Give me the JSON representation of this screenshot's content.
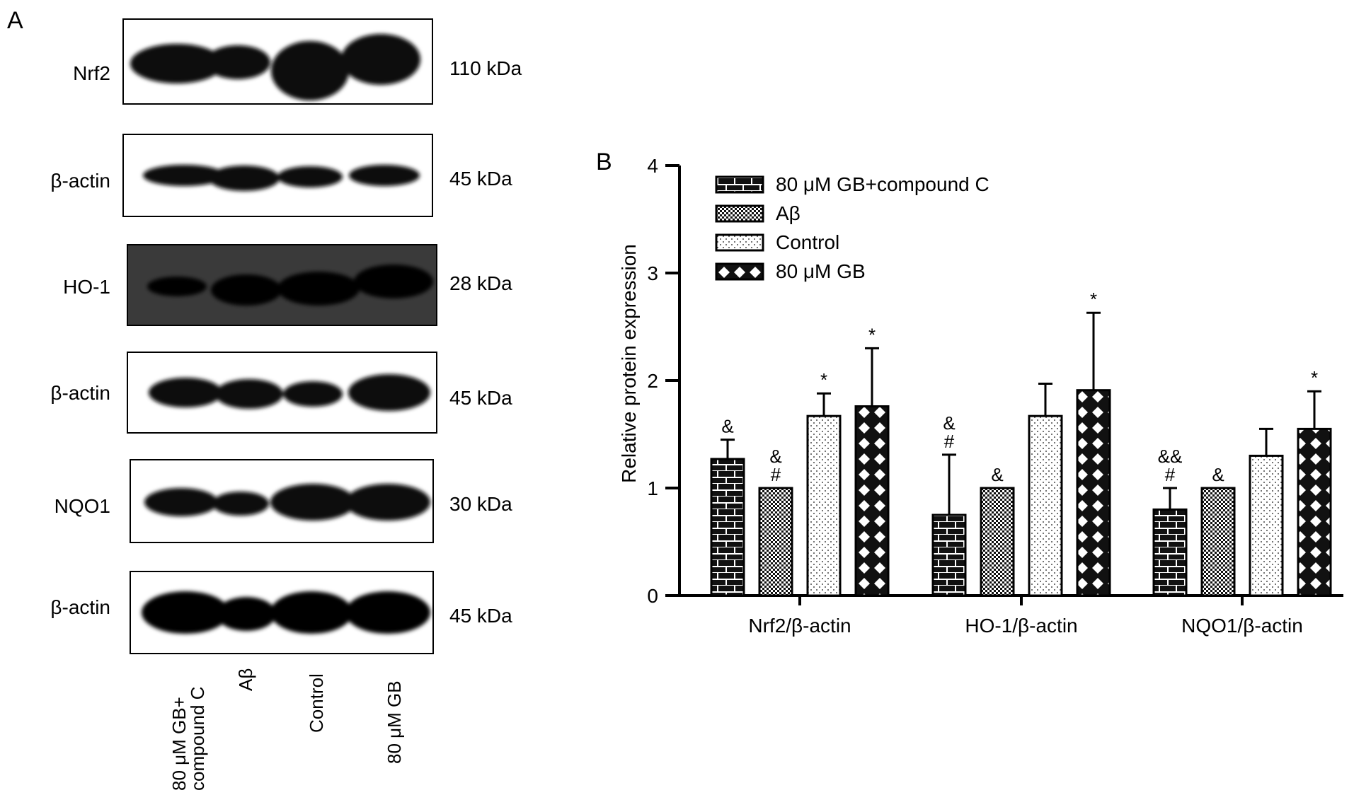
{
  "panel_a": {
    "label": "A",
    "blots": [
      {
        "protein": "Nrf2",
        "kda": "110 kDa"
      },
      {
        "protein": "β-actin",
        "kda": "45 kDa"
      },
      {
        "protein": "HO-1",
        "kda": "28 kDa"
      },
      {
        "protein": "β-actin",
        "kda": "45 kDa"
      },
      {
        "protein": "NQO1",
        "kda": "30 kDa"
      },
      {
        "protein": "β-actin",
        "kda": "45 kDa"
      }
    ],
    "lanes": [
      {
        "line1": "80 μM GB+",
        "line2": "compound C"
      },
      {
        "line1": "Aβ",
        "line2": ""
      },
      {
        "line1": "Control",
        "line2": ""
      },
      {
        "line1": "80 μM GB",
        "line2": ""
      }
    ]
  },
  "chart_data": {
    "type": "bar",
    "panel_label": "B",
    "title": "",
    "xlabel": "",
    "ylabel": "Relative protein expression",
    "ylim": [
      0,
      4
    ],
    "yticks": [
      "0",
      "1",
      "2",
      "3",
      "4"
    ],
    "grid": false,
    "legend_position": "top-left",
    "categories": [
      "Nrf2/β-actin",
      "HO-1/β-actin",
      "NQO1/β-actin"
    ],
    "series": [
      {
        "name": "80 μM GB+compound C",
        "pattern": "brick",
        "values": [
          1.27,
          0.75,
          0.8
        ],
        "errors": [
          0.18,
          0.56,
          0.2
        ],
        "annotations": [
          [
            "&"
          ],
          [
            "&",
            "#"
          ],
          [
            "&&",
            "#"
          ]
        ]
      },
      {
        "name": "Aβ",
        "pattern": "checker",
        "values": [
          1.0,
          1.0,
          1.0
        ],
        "errors": [
          0,
          0,
          0
        ],
        "annotations": [
          [
            "&",
            "#"
          ],
          [
            "&"
          ],
          [
            "&"
          ]
        ]
      },
      {
        "name": "Control",
        "pattern": "dots",
        "values": [
          1.67,
          1.67,
          1.3
        ],
        "errors": [
          0.21,
          0.3,
          0.25
        ],
        "annotations": [
          [
            "*"
          ],
          [],
          []
        ]
      },
      {
        "name": "80 μM GB",
        "pattern": "diamond",
        "values": [
          1.76,
          1.91,
          1.55
        ],
        "errors": [
          0.54,
          0.72,
          0.35
        ],
        "annotations": [
          [
            "*"
          ],
          [
            "*"
          ],
          [
            "*"
          ]
        ]
      }
    ]
  }
}
